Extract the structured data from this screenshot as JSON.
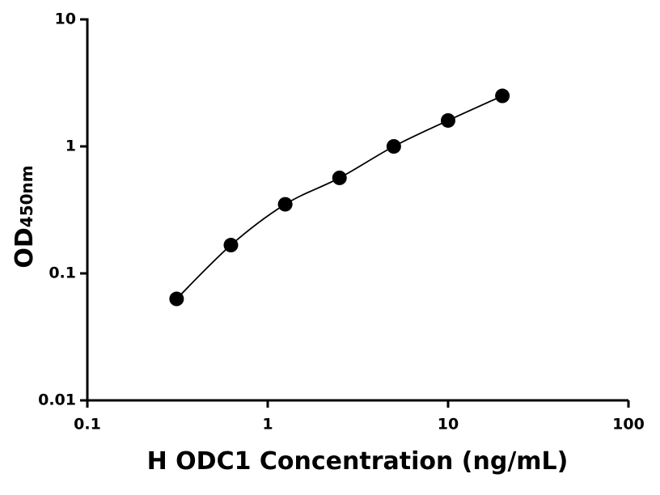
{
  "chart_data": {
    "type": "scatter",
    "x_label": "H ODC1 Concentration (ng/mL)",
    "y_label": "OD",
    "y_label_subscript": "450nm",
    "x": [
      0.3125,
      0.625,
      1.25,
      2.5,
      5,
      10,
      20
    ],
    "values": [
      0.063,
      0.167,
      0.35,
      0.565,
      1.0,
      1.6,
      2.5
    ],
    "color": "#000000",
    "curve": true,
    "xscale": "log",
    "yscale": "log",
    "xlim": [
      0.1,
      100
    ],
    "xticks": [
      0.1,
      1,
      10,
      100
    ],
    "ylim": [
      0.01,
      10
    ],
    "yticks": [
      0.01,
      0.1,
      1,
      10
    ],
    "grid": false
  }
}
